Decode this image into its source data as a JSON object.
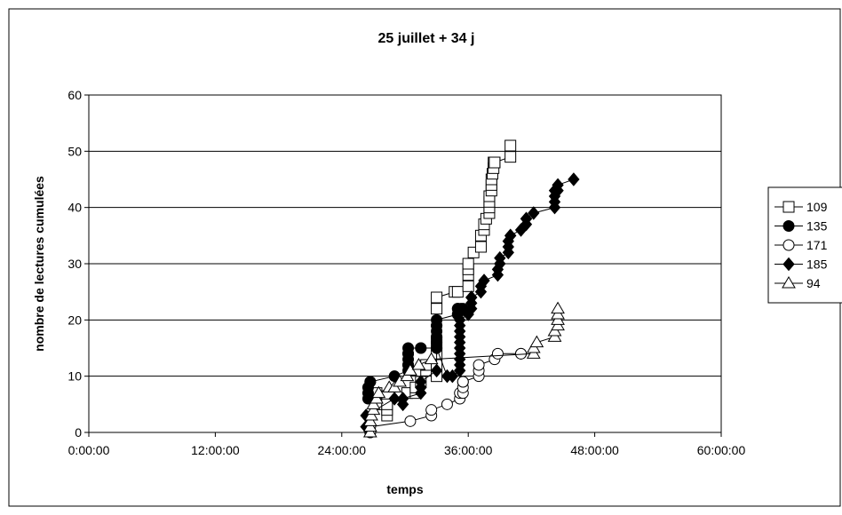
{
  "chart_data": {
    "type": "scatter",
    "title": "25 juillet + 34 j",
    "xlabel": "temps",
    "ylabel": "nombre de lectures cumulées",
    "xlim": [
      0,
      60
    ],
    "ylim": [
      0,
      60
    ],
    "x_unit": "hours",
    "x_ticks": [
      0,
      12,
      24,
      36,
      48,
      60
    ],
    "x_tick_labels": [
      "0:00:00",
      "12:00:00",
      "24:00:00",
      "36:00:00",
      "48:00:00",
      "60:00:00"
    ],
    "y_ticks": [
      0,
      10,
      20,
      30,
      40,
      50,
      60
    ],
    "y_tick_labels": [
      "0",
      "10",
      "20",
      "30",
      "40",
      "50",
      "60"
    ],
    "grid": "horizontal",
    "legend_position": "right",
    "series": [
      {
        "name": "109",
        "marker": "square-open",
        "x": [
          27.3,
          27.3,
          28.3,
          28.3,
          28.3,
          30.2,
          31.0,
          31.0,
          31.5,
          32.0,
          32.0,
          33.0,
          33.0,
          33.0,
          33.0,
          33.0,
          33.0,
          34.7,
          35.0,
          36.0,
          36.0,
          36.0,
          36.0,
          36.5,
          37.2,
          37.2,
          37.5,
          37.5,
          37.7,
          38.0,
          38.0,
          38.0,
          38.0,
          38.2,
          38.2,
          38.2,
          38.3,
          38.4,
          38.4,
          38.5,
          38.5,
          40.0,
          40.0
        ],
        "y": [
          5,
          7,
          3,
          4,
          5,
          7,
          7,
          8,
          9,
          11,
          12,
          10,
          12,
          14,
          16,
          22,
          24,
          25,
          25,
          26,
          28,
          29,
          30,
          32,
          33,
          35,
          36,
          37,
          38,
          39,
          40,
          41,
          42,
          43,
          44,
          45,
          46,
          47,
          48,
          48,
          48,
          49,
          51
        ]
      },
      {
        "name": "135",
        "marker": "circle-filled",
        "x": [
          26.5,
          26.5,
          26.5,
          26.7,
          26.7,
          29.0,
          30.3,
          30.3,
          30.3,
          30.3,
          30.3,
          30.3,
          30.3,
          31.5,
          31.5,
          33.0,
          33.0,
          33.0,
          33.0,
          33.0,
          33.0,
          33.0,
          33.0,
          35.0,
          35.0,
          35.0,
          35.0,
          35.3,
          35.5
        ],
        "y": [
          6,
          7,
          8,
          9,
          9,
          10,
          11,
          12,
          12,
          13,
          14,
          14,
          15,
          15,
          15,
          15,
          16,
          17,
          17,
          18,
          19,
          19,
          20,
          21,
          21,
          22,
          22,
          22,
          22
        ]
      },
      {
        "name": "171",
        "marker": "circle-open",
        "x": [
          26.7,
          26.7,
          26.7,
          30.5,
          32.5,
          32.5,
          34.0,
          35.2,
          35.2,
          35.5,
          35.5,
          35.5,
          35.5,
          37.0,
          37.0,
          37.0,
          38.5,
          38.8,
          41.0,
          41.0
        ],
        "y": [
          0,
          0,
          1,
          2,
          3,
          4,
          5,
          6,
          7,
          7,
          8,
          9,
          9,
          10,
          11,
          12,
          13,
          14,
          14,
          14
        ]
      },
      {
        "name": "185",
        "marker": "diamond-filled",
        "x": [
          26.3,
          26.3,
          29.0,
          29.8,
          29.8,
          31.5,
          31.5,
          31.5,
          31.5,
          33.0,
          33.0,
          34.0,
          34.5,
          35.2,
          35.2,
          35.2,
          35.2,
          35.2,
          35.2,
          35.2,
          35.2,
          35.2,
          35.2,
          36.0,
          36.3,
          36.3,
          36.3,
          36.3,
          37.2,
          37.2,
          37.5,
          38.8,
          38.8,
          39.0,
          39.0,
          39.8,
          39.8,
          39.8,
          40.0,
          40.0,
          41.0,
          41.5,
          41.5,
          41.5,
          42.2,
          44.2,
          44.2,
          44.2,
          44.2,
          44.5,
          44.5,
          46.0
        ],
        "y": [
          1,
          3,
          6,
          5,
          6,
          7,
          8,
          8,
          9,
          11,
          15,
          10,
          10,
          11,
          12,
          13,
          14,
          15,
          16,
          17,
          18,
          19,
          20,
          21,
          22,
          23,
          24,
          24,
          25,
          26,
          27,
          28,
          29,
          30,
          31,
          32,
          33,
          34,
          35,
          35,
          36,
          37,
          38,
          38,
          39,
          40,
          41,
          42,
          43,
          43,
          44,
          45
        ]
      },
      {
        "name": "94",
        "marker": "triangle-open",
        "x": [
          26.7,
          26.7,
          26.7,
          26.8,
          27.0,
          27.0,
          27.3,
          27.5,
          28.5,
          29.0,
          29.5,
          30.2,
          30.5,
          30.5,
          31.3,
          32.5,
          42.2,
          42.2,
          42.5,
          44.2,
          44.2,
          44.5,
          44.5,
          44.5,
          44.5
        ],
        "y": [
          0,
          1,
          2,
          3,
          4,
          5,
          6,
          7,
          8,
          8,
          9,
          10,
          11,
          11,
          12,
          13,
          14,
          15,
          16,
          17,
          18,
          19,
          20,
          21,
          22
        ]
      }
    ]
  }
}
